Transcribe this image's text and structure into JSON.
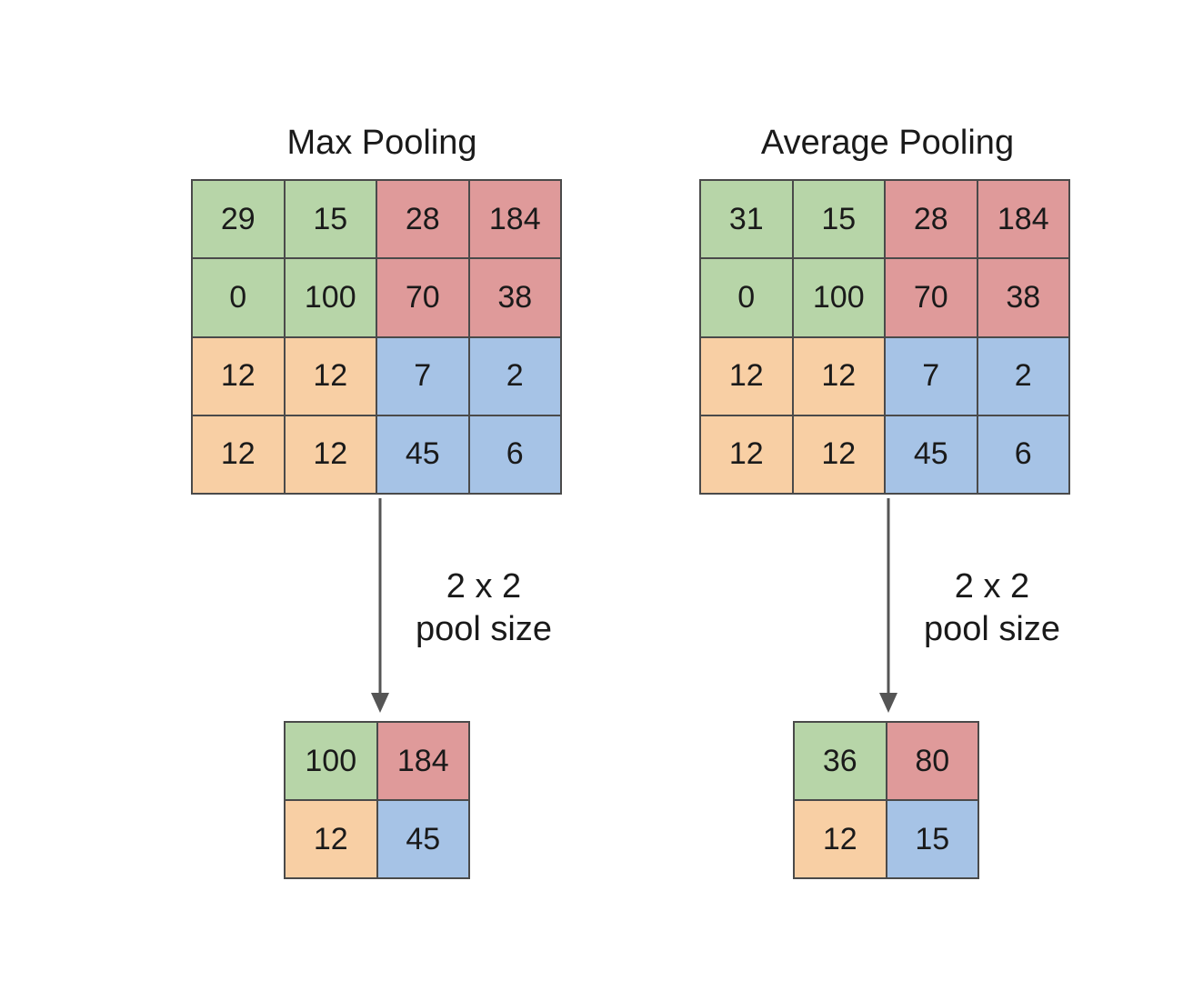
{
  "colors": {
    "green": "#b7d5a8",
    "red": "#df9a9a",
    "orange": "#f8cfa4",
    "blue": "#a6c3e6",
    "border": "#4a4a4a",
    "arrow": "#555555"
  },
  "panels": [
    {
      "title": "Max Pooling",
      "input": [
        [
          "29",
          "15",
          "28",
          "184"
        ],
        [
          "0",
          "100",
          "70",
          "38"
        ],
        [
          "12",
          "12",
          "7",
          "2"
        ],
        [
          "12",
          "12",
          "45",
          "6"
        ]
      ],
      "pool_line1": "2 x 2",
      "pool_line2": "pool size",
      "output": [
        [
          "100",
          "184"
        ],
        [
          "12",
          "45"
        ]
      ]
    },
    {
      "title": "Average Pooling",
      "input": [
        [
          "31",
          "15",
          "28",
          "184"
        ],
        [
          "0",
          "100",
          "70",
          "38"
        ],
        [
          "12",
          "12",
          "7",
          "2"
        ],
        [
          "12",
          "12",
          "45",
          "6"
        ]
      ],
      "pool_line1": "2 x 2",
      "pool_line2": "pool size",
      "output": [
        [
          "36",
          "80"
        ],
        [
          "12",
          "15"
        ]
      ]
    }
  ]
}
